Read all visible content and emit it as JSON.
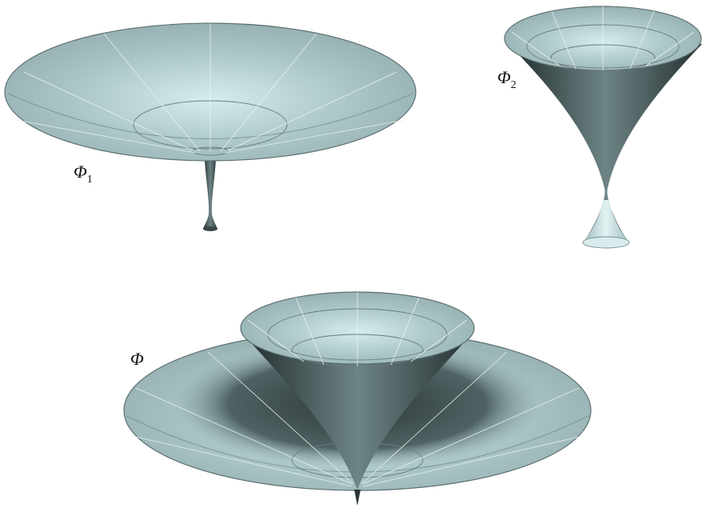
{
  "labels": [
    {
      "symbol": "Φ",
      "subscript": "1"
    },
    {
      "symbol": "Φ",
      "subscript": "2"
    },
    {
      "symbol": "Φ"
    }
  ]
}
